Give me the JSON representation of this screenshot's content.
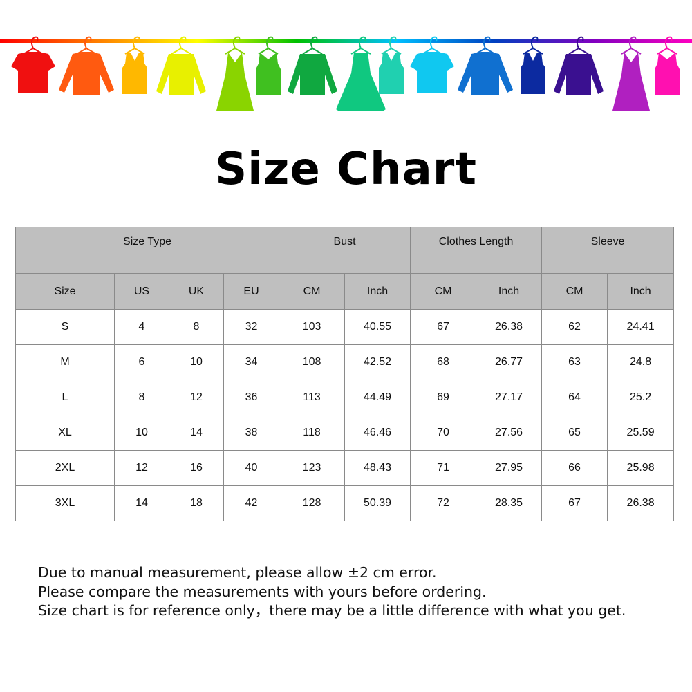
{
  "banner": {
    "line_gradient": [
      "#ff0000",
      "#ff8000",
      "#ffff00",
      "#00c000",
      "#00c0ff",
      "#0040c0",
      "#8000c0",
      "#ff00c0"
    ],
    "garments": [
      {
        "type": "tshirt",
        "color": "#f01010"
      },
      {
        "type": "shirt",
        "color": "#ff5a10"
      },
      {
        "type": "tank",
        "color": "#ffb800"
      },
      {
        "type": "sweater",
        "color": "#e8f000"
      },
      {
        "type": "dress",
        "color": "#8ad400"
      },
      {
        "type": "tankdress",
        "color": "#40c020"
      },
      {
        "type": "sweater",
        "color": "#10a840"
      },
      {
        "type": "ballgown",
        "color": "#10c880"
      },
      {
        "type": "tank",
        "color": "#20d0b0"
      },
      {
        "type": "tshirt",
        "color": "#10c8f0"
      },
      {
        "type": "shirt",
        "color": "#1070d0"
      },
      {
        "type": "tank",
        "color": "#0c2aa0"
      },
      {
        "type": "sweater",
        "color": "#3a1090"
      },
      {
        "type": "dress",
        "color": "#b020c0"
      },
      {
        "type": "tankdress",
        "color": "#ff10b0"
      }
    ]
  },
  "title": "Size Chart",
  "table": {
    "group_headers": [
      {
        "label": "Size Type",
        "span": 4
      },
      {
        "label": "Bust",
        "span": 2
      },
      {
        "label": "Clothes Length",
        "span": 2
      },
      {
        "label": "Sleeve",
        "span": 2
      }
    ],
    "columns": [
      "Size",
      "US",
      "UK",
      "EU",
      "CM",
      "Inch",
      "CM",
      "Inch",
      "CM",
      "Inch"
    ],
    "rows": [
      [
        "S",
        "4",
        "8",
        "32",
        "103",
        "40.55",
        "67",
        "26.38",
        "62",
        "24.41"
      ],
      [
        "M",
        "6",
        "10",
        "34",
        "108",
        "42.52",
        "68",
        "26.77",
        "63",
        "24.8"
      ],
      [
        "L",
        "8",
        "12",
        "36",
        "113",
        "44.49",
        "69",
        "27.17",
        "64",
        "25.2"
      ],
      [
        "XL",
        "10",
        "14",
        "38",
        "118",
        "46.46",
        "70",
        "27.56",
        "65",
        "25.59"
      ],
      [
        "2XL",
        "12",
        "16",
        "40",
        "123",
        "48.43",
        "71",
        "27.95",
        "66",
        "25.98"
      ],
      [
        "3XL",
        "14",
        "18",
        "42",
        "128",
        "50.39",
        "72",
        "28.35",
        "67",
        "26.38"
      ]
    ]
  },
  "notes": [
    "Due to manual measurement, please allow ±2 cm error.",
    "Please compare the measurements with yours before ordering.",
    "Size chart is for reference only，there may be a little difference with what you get."
  ]
}
